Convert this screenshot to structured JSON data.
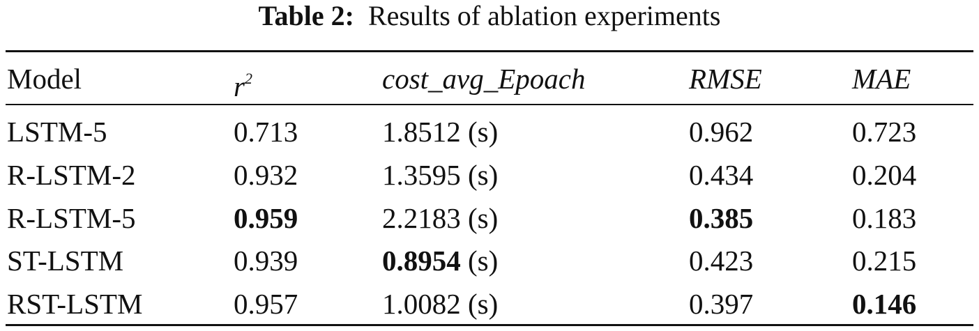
{
  "caption": {
    "label": "Table 2:",
    "text": "Results of ablation experiments"
  },
  "table": {
    "header": [
      "Model",
      {
        "base": "r",
        "sup": "2"
      },
      "cost_avg_Epoach",
      "RMSE",
      "MAE"
    ],
    "italic_header_columns": [
      1,
      2,
      3,
      4
    ],
    "rows": [
      {
        "cells": [
          "LSTM-5",
          "0.713",
          {
            "number": "1.8512",
            "unit": "(s)"
          },
          "0.962",
          "0.723"
        ],
        "bold": []
      },
      {
        "cells": [
          "R-LSTM-2",
          "0.932",
          {
            "number": "1.3595",
            "unit": "(s)"
          },
          "0.434",
          "0.204"
        ],
        "bold": []
      },
      {
        "cells": [
          "R-LSTM-5",
          "0.959",
          {
            "number": "2.2183",
            "unit": "(s)"
          },
          "0.385",
          "0.183"
        ],
        "bold": [
          1,
          3
        ]
      },
      {
        "cells": [
          "ST-LSTM",
          "0.939",
          {
            "number": "0.8954",
            "unit": "(s)"
          },
          "0.423",
          "0.215"
        ],
        "bold": [
          2
        ]
      },
      {
        "cells": [
          "RST-LSTM",
          "0.957",
          {
            "number": "1.0082",
            "unit": "(s)"
          },
          "0.397",
          "0.146"
        ],
        "bold": [
          4
        ]
      }
    ]
  }
}
